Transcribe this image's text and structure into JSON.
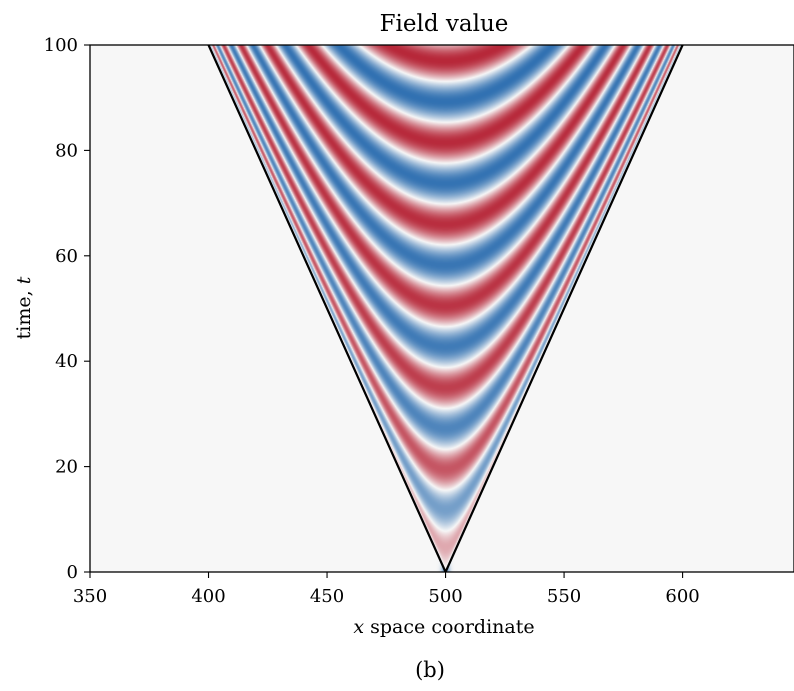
{
  "chart_data": {
    "type": "heatmap",
    "title": "Field value",
    "xlabel_var": "x",
    "xlabel_rest": " space coordinate",
    "ylabel_rest": "time, ",
    "ylabel_var": "t",
    "caption": "(b)",
    "xlim": [
      350,
      647
    ],
    "ylim": [
      0,
      100
    ],
    "xticks": [
      350,
      400,
      450,
      500,
      550,
      600
    ],
    "yticks": [
      0,
      20,
      40,
      60,
      80,
      100
    ],
    "grid": false,
    "colormap": "diverging red-white-blue",
    "source_x": 500,
    "light_cone": {
      "left": [
        [
          500,
          0
        ],
        [
          400,
          100
        ]
      ],
      "right": [
        [
          500,
          0
        ],
        [
          600,
          100
        ]
      ]
    },
    "colors": {
      "background": "#f7f7f7",
      "positive": "#b2182b",
      "negative": "#2166ac",
      "cone": "#000000"
    }
  }
}
